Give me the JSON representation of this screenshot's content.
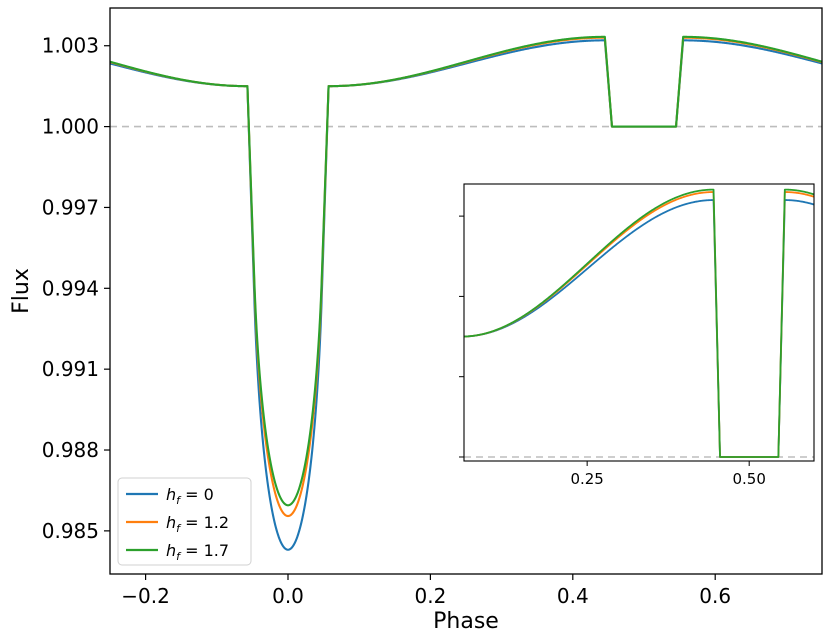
{
  "chart_data": {
    "type": "line",
    "xlabel": "Phase",
    "ylabel": "Flux",
    "xlim": [
      -0.25,
      0.75
    ],
    "ylim": [
      0.9834,
      1.0044
    ],
    "xticks": [
      -0.2,
      0.0,
      0.2,
      0.4,
      0.6
    ],
    "xtick_labels": [
      "−0.2",
      "0.0",
      "0.2",
      "0.4",
      "0.6"
    ],
    "yticks": [
      0.985,
      0.988,
      0.991,
      0.994,
      0.997,
      1.0,
      1.003
    ],
    "ytick_labels": [
      "0.985",
      "0.988",
      "0.991",
      "0.994",
      "0.997",
      "1.000",
      "1.003"
    ],
    "reference_line": {
      "y": 1.0,
      "style": "dashed",
      "color": "#bdbdbd"
    },
    "legend": {
      "placement": "lower-left",
      "entries": [
        "h_f = 0",
        "h_f = 1.2",
        "h_f = 1.7"
      ]
    },
    "series": [
      {
        "name": "h_f = 0",
        "name_base": "h",
        "name_sub": "f",
        "name_value": "0",
        "color": "#1f77b4",
        "transit_depth": 0.0157,
        "max_flux": 1.0032,
        "flux_at_edge": 1.00182
      },
      {
        "name": "h_f = 1.2",
        "name_base": "h",
        "name_sub": "f",
        "name_value": "1.2",
        "color": "#ff7f0e",
        "transit_depth": 0.01445,
        "max_flux": 1.0033,
        "flux_at_edge": 1.00196
      },
      {
        "name": "h_f = 1.7",
        "name_base": "h",
        "name_sub": "f",
        "name_value": "1.7",
        "color": "#2ca02c",
        "transit_depth": 0.01405,
        "max_flux": 1.00333,
        "flux_at_edge": 1.00205
      }
    ],
    "inset": {
      "xlim": [
        0.06,
        0.6
      ],
      "ylim": [
        0.99995,
        1.0034
      ],
      "xticks": [
        0.25,
        0.5
      ],
      "xtick_labels": [
        "0.25",
        "0.50"
      ],
      "yticks": [
        1.0,
        1.001,
        1.002,
        1.003
      ]
    }
  }
}
